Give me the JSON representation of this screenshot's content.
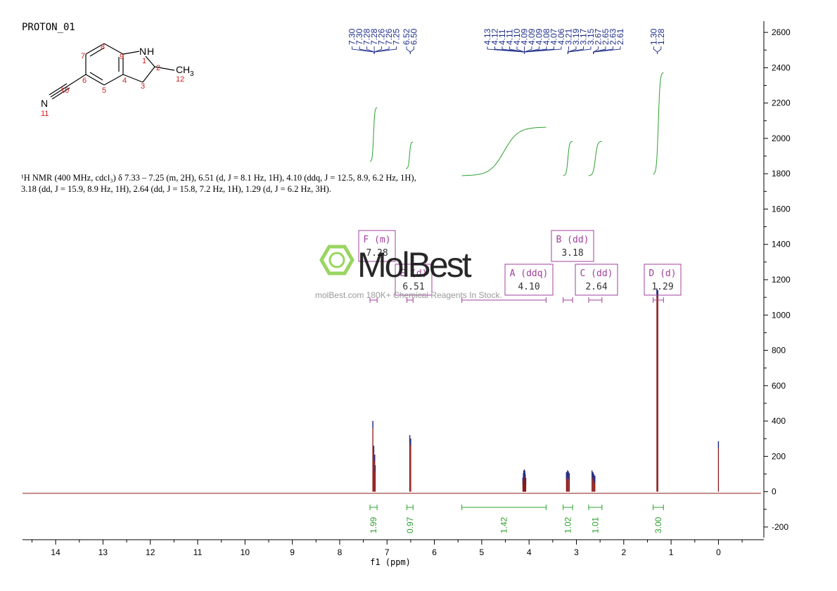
{
  "title": "PROTON_01",
  "nmr_text": "¹H NMR (400 MHz, cdcl₃) δ 7.33 – 7.25 (m, 2H), 6.51 (d, J = 8.1 Hz, 1H), 4.10 (ddq, J = 12.5, 8.9, 6.2 Hz, 1H), 3.18 (dd, J = 15.9, 8.9 Hz, 1H), 2.64 (dd, J = 15.8, 7.2 Hz, 1H), 1.29 (d, J = 6.2 Hz, 3H).",
  "watermark": {
    "brand": "MolBest",
    "url": "molBest.com 180K+ Chemical Reagents In Stock."
  },
  "molecule": {
    "atoms": [
      "N",
      "H",
      "C",
      "H",
      "3",
      "N"
    ],
    "numbers": [
      "1",
      "2",
      "3",
      "4",
      "5",
      "6",
      "7",
      "8",
      "9",
      "10",
      "11",
      "12"
    ]
  },
  "colors": {
    "spectrum": "#8b1a1a",
    "peak_labels": "#1f2f8a",
    "integral": "#2ea02e",
    "multiplet_box": "#a0409c",
    "atom_numbers": "#d42020"
  },
  "chart_data": {
    "type": "line",
    "xlabel": "f1 (ppm)",
    "xlim": [
      14.7,
      -0.9
    ],
    "ylim": [
      -260,
      2680
    ],
    "x_ticks": [
      14,
      13,
      12,
      11,
      10,
      9,
      8,
      7,
      6,
      5,
      4,
      3,
      2,
      1,
      0
    ],
    "y_ticks": [
      -200,
      0,
      200,
      400,
      600,
      800,
      1000,
      1200,
      1400,
      1600,
      1800,
      2000,
      2200,
      2400,
      2600
    ],
    "peaks": [
      {
        "ppm": 7.3,
        "height": 400
      },
      {
        "ppm": 7.28,
        "height": 260
      },
      {
        "ppm": 7.26,
        "height": 210
      },
      {
        "ppm": 7.25,
        "height": 150
      },
      {
        "ppm": 6.52,
        "height": 320
      },
      {
        "ppm": 6.5,
        "height": 300
      },
      {
        "ppm": 4.13,
        "height": 80
      },
      {
        "ppm": 4.12,
        "height": 105
      },
      {
        "ppm": 4.11,
        "height": 120
      },
      {
        "ppm": 4.1,
        "height": 125
      },
      {
        "ppm": 4.09,
        "height": 118
      },
      {
        "ppm": 4.08,
        "height": 100
      },
      {
        "ppm": 4.07,
        "height": 78
      },
      {
        "ppm": 3.21,
        "height": 110
      },
      {
        "ppm": 3.19,
        "height": 120
      },
      {
        "ppm": 3.17,
        "height": 115
      },
      {
        "ppm": 3.15,
        "height": 105
      },
      {
        "ppm": 2.67,
        "height": 120
      },
      {
        "ppm": 2.65,
        "height": 110
      },
      {
        "ppm": 2.63,
        "height": 100
      },
      {
        "ppm": 2.61,
        "height": 90
      },
      {
        "ppm": 1.3,
        "height": 1150
      },
      {
        "ppm": 1.28,
        "height": 1140
      },
      {
        "ppm": 0.0,
        "height": 285
      }
    ],
    "peak_label_groups": [
      {
        "labels": [
          "7.30",
          "7.30",
          "7.28",
          "7.28",
          "7.26",
          "7.26",
          "7.25"
        ],
        "anchor_ppm": 7.27
      },
      {
        "labels": [
          "6.52",
          "6.50"
        ],
        "anchor_ppm": 6.51
      },
      {
        "labels": [
          "4.13",
          "4.12",
          "4.11",
          "4.11",
          "4.10",
          "4.09",
          "4.09",
          "4.09",
          "4.08",
          "4.07",
          "4.06"
        ],
        "anchor_ppm": 4.1
      },
      {
        "labels": [
          "3.21",
          "3.19",
          "3.17",
          "3.15"
        ],
        "anchor_ppm": 3.18
      },
      {
        "labels": [
          "2.67",
          "2.65",
          "2.63",
          "2.61"
        ],
        "anchor_ppm": 2.64
      },
      {
        "labels": [
          "1.30",
          "1.28"
        ],
        "anchor_ppm": 1.29
      }
    ],
    "integrals": [
      {
        "value": "1.99",
        "from": 7.36,
        "to": 7.21
      },
      {
        "value": "0.97",
        "from": 6.58,
        "to": 6.45
      },
      {
        "value": "1.42",
        "from": 5.42,
        "to": 3.64
      },
      {
        "value": "1.02",
        "from": 3.28,
        "to": 3.08
      },
      {
        "value": "1.01",
        "from": 2.74,
        "to": 2.46
      },
      {
        "value": "3.00",
        "from": 1.38,
        "to": 1.16
      }
    ],
    "multiplets": [
      {
        "label": "F (m)",
        "shift": "7.28",
        "from": 7.36,
        "to": 7.21
      },
      {
        "label": "E (d)",
        "shift": "6.51",
        "from": 6.58,
        "to": 6.45
      },
      {
        "label": "A (ddq)",
        "shift": "4.10",
        "from": 5.42,
        "to": 3.64
      },
      {
        "label": "B (dd)",
        "shift": "3.18",
        "from": 3.28,
        "to": 3.08
      },
      {
        "label": "C (dd)",
        "shift": "2.64",
        "from": 2.74,
        "to": 2.46
      },
      {
        "label": "D (d)",
        "shift": "1.29",
        "from": 1.38,
        "to": 1.16
      }
    ]
  }
}
